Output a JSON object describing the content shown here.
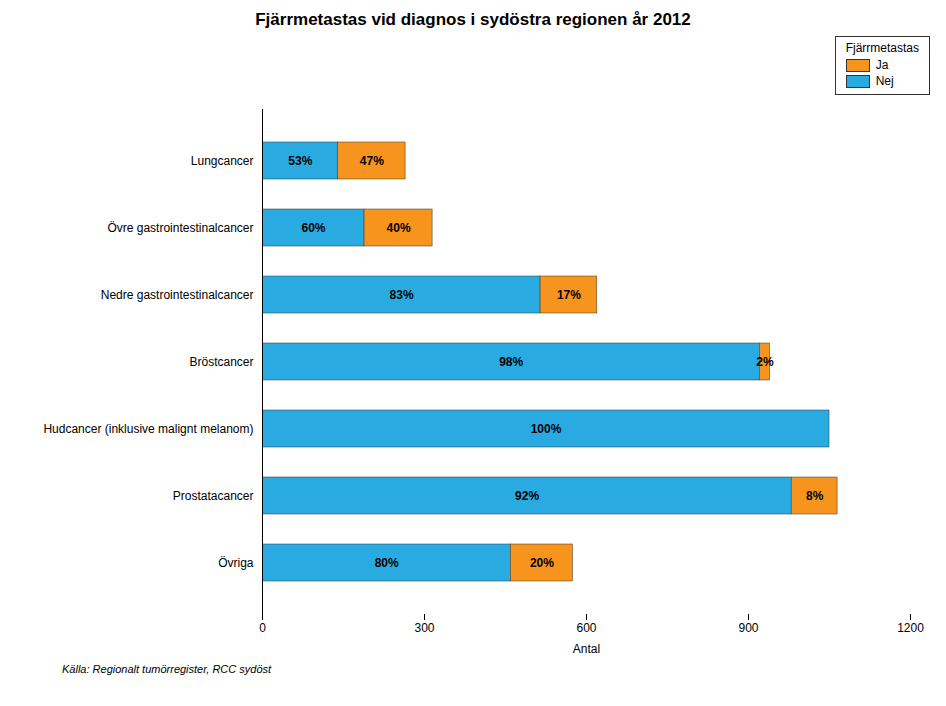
{
  "chart_data": {
    "type": "bar",
    "orientation": "horizontal",
    "stacked": true,
    "title": "Fjärrmetastas vid diagnos i sydöstra regionen år 2012",
    "xlabel": "Antal",
    "source": "Källa: Regionalt tumörregister, RCC sydöst",
    "legend_title": "Fjärrmetastas",
    "legend": "upper right",
    "grid": false,
    "categories": [
      "Lungcancer",
      "Övre gastrointestinalcancer",
      "Nedre gastrointestinalcancer",
      "Bröstcancer",
      "Hudcancer (inklusive malignt melanom)",
      "Prostatacancer",
      "Övriga"
    ],
    "series": [
      {
        "name": "Nej",
        "color": "#29ABE2",
        "values": [
          140,
          189,
          515,
          921,
          1050,
          980,
          460
        ],
        "percent_labels": [
          "53%",
          "60%",
          "83%",
          "98%",
          "100%",
          "92%",
          "80%"
        ]
      },
      {
        "name": "Ja",
        "color": "#F7941D",
        "values": [
          125,
          126,
          105,
          19,
          0,
          85,
          115
        ],
        "percent_labels": [
          "47%",
          "40%",
          "17%",
          "2%",
          null,
          "8%",
          "20%"
        ]
      }
    ],
    "xlim": [
      0,
      1200
    ],
    "xticks": [
      0,
      300,
      600,
      900,
      1200
    ]
  }
}
